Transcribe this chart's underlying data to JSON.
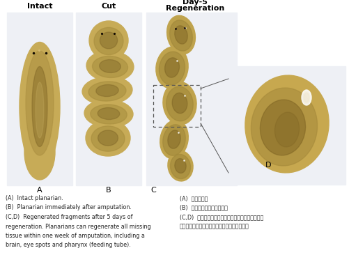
{
  "bg_color": "#ffffff",
  "fig_width": 5.01,
  "fig_height": 3.76,
  "dpi": 100,
  "caption_left_lines": [
    "(A)  Intact planarian.",
    "(B)  Planarian immediately after amputation.",
    "(C,D)  Regenerated fragments after 5 days of",
    "regeneration. Planarians can regenerate all missing",
    "tissue within one week of amputation, including a",
    "brain, eye spots and pharynx (feeding tube)."
  ],
  "caption_right_lines": [
    "(A)  完整的渦蟲",
    "(B)  渦蟲被切斷後的即時形態",
    "(C,D)  組織再生五天後的形態；渦蟲能在一周內再生",
    "所有缺失組織，包括腦、眼班及咍尼（餓食管）"
  ],
  "photo_bg": "#e8eef5",
  "worm_outer": "#c8a84b",
  "worm_mid": "#a8883a",
  "worm_dark": "#7a6020",
  "eye_color": "#1a1008"
}
